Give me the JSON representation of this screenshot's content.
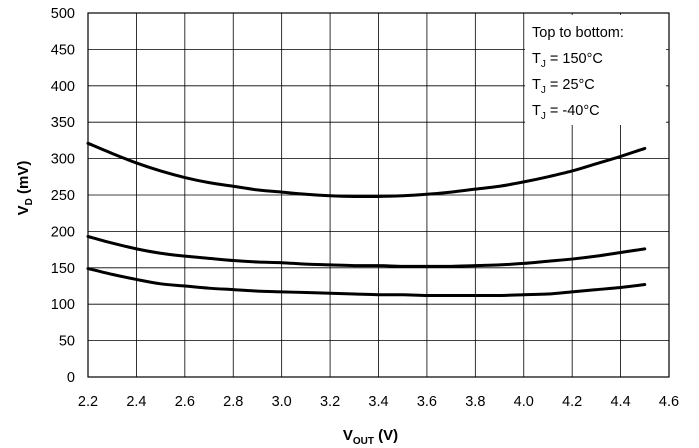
{
  "chart_data": {
    "type": "line",
    "xlabel": {
      "main": "V",
      "sub": "OUT",
      "unit": " (V)"
    },
    "ylabel": {
      "main": "V",
      "sub": "D",
      "unit": " (mV)"
    },
    "xlim": [
      2.2,
      4.6
    ],
    "ylim": [
      0,
      500
    ],
    "x_ticks": [
      2.2,
      2.4,
      2.6,
      2.8,
      3.0,
      3.2,
      3.4,
      3.6,
      3.8,
      4.0,
      4.2,
      4.4,
      4.6
    ],
    "x_tick_labels": [
      "2.2",
      "2.4",
      "2.6",
      "2.8",
      "3.0",
      "3.2",
      "3.4",
      "3.6",
      "3.8",
      "4.0",
      "4.2",
      "4.4",
      "4.6"
    ],
    "y_ticks": [
      0,
      50,
      100,
      150,
      200,
      250,
      300,
      350,
      400,
      450,
      500
    ],
    "y_tick_labels": [
      "0",
      "50",
      "100",
      "150",
      "200",
      "250",
      "300",
      "350",
      "400",
      "450",
      "500"
    ],
    "grid": true,
    "legend": {
      "position": "top-right",
      "header": "Top to bottom:",
      "entries": [
        {
          "main": "T",
          "sub": "J",
          "value": " = 150°C"
        },
        {
          "main": "T",
          "sub": "J",
          "value": " = 25°C"
        },
        {
          "main": "T",
          "sub": "J",
          "value": " = -40°C"
        }
      ]
    },
    "series": [
      {
        "x": [
          2.2,
          2.3,
          2.4,
          2.5,
          2.6,
          2.7,
          2.8,
          2.9,
          3.0,
          3.1,
          3.2,
          3.3,
          3.4,
          3.5,
          3.6,
          3.7,
          3.8,
          3.9,
          4.0,
          4.1,
          4.2,
          4.3,
          4.4,
          4.5
        ],
        "y": [
          321,
          307,
          294,
          283,
          274,
          267,
          262,
          257,
          254,
          251,
          249,
          248,
          248,
          249,
          251,
          254,
          258,
          262,
          268,
          275,
          283,
          293,
          303,
          314
        ]
      },
      {
        "x": [
          2.2,
          2.3,
          2.4,
          2.5,
          2.6,
          2.7,
          2.8,
          2.9,
          3.0,
          3.1,
          3.2,
          3.3,
          3.4,
          3.5,
          3.6,
          3.7,
          3.8,
          3.9,
          4.0,
          4.1,
          4.2,
          4.3,
          4.4,
          4.5
        ],
        "y": [
          193,
          184,
          176,
          170,
          166,
          163,
          160,
          158,
          157,
          155,
          154,
          153,
          153,
          152,
          152,
          152,
          153,
          154,
          156,
          159,
          162,
          166,
          171,
          176
        ]
      },
      {
        "x": [
          2.2,
          2.3,
          2.4,
          2.5,
          2.6,
          2.7,
          2.8,
          2.9,
          3.0,
          3.1,
          3.2,
          3.3,
          3.4,
          3.5,
          3.6,
          3.7,
          3.8,
          3.9,
          4.0,
          4.1,
          4.2,
          4.3,
          4.4,
          4.5
        ],
        "y": [
          149,
          141,
          134,
          128,
          125,
          122,
          120,
          118,
          117,
          116,
          115,
          114,
          113,
          113,
          112,
          112,
          112,
          112,
          113,
          114,
          117,
          120,
          123,
          127
        ]
      }
    ]
  }
}
